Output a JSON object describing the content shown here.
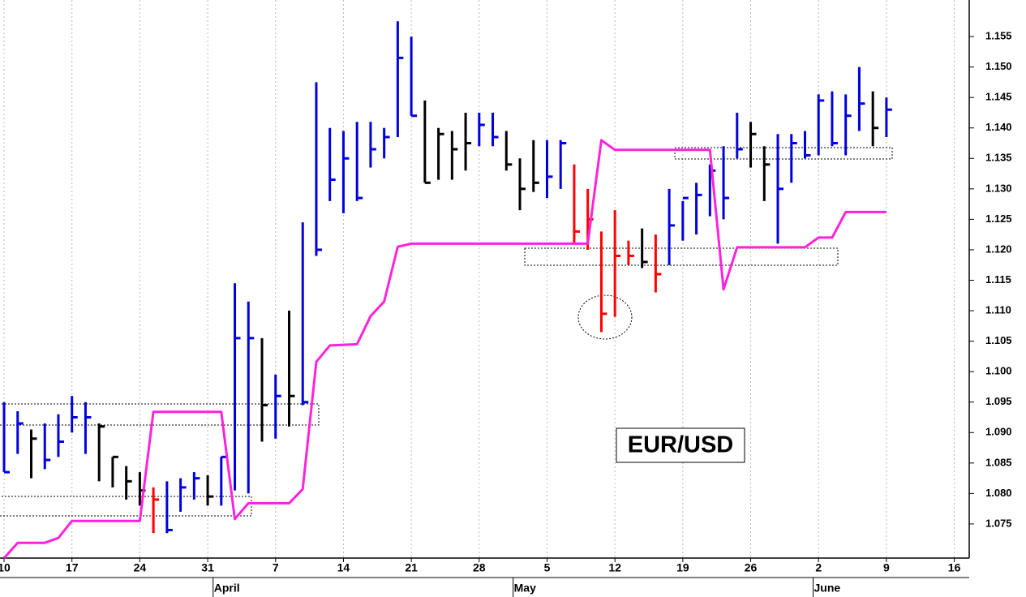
{
  "chart_data": {
    "type": "hlc",
    "annotation": "EUR/USD",
    "x": [
      0,
      1,
      2,
      3,
      4,
      5,
      6,
      7,
      8,
      9,
      10,
      11,
      12,
      13,
      14,
      15,
      16,
      17,
      18,
      19,
      20,
      21,
      22,
      23,
      24,
      25,
      26,
      27,
      28,
      29,
      30,
      31,
      32,
      33,
      34,
      35,
      36,
      37,
      38,
      39,
      40,
      41,
      42,
      43,
      44,
      45,
      46,
      47,
      48,
      49,
      50,
      51,
      52,
      53,
      54,
      55,
      56,
      57,
      58,
      59,
      60,
      61,
      62,
      63,
      64,
      65
    ],
    "high": [
      1.095,
      1.0935,
      1.0905,
      1.0915,
      1.093,
      1.096,
      1.095,
      1.0915,
      1.086,
      1.0845,
      1.0835,
      1.081,
      1.082,
      1.0825,
      1.0835,
      1.083,
      1.086,
      1.1145,
      1.1115,
      1.1055,
      1.0995,
      1.11,
      1.1245,
      1.1475,
      1.14,
      1.1395,
      1.141,
      1.141,
      1.14,
      1.1575,
      1.155,
      1.1445,
      1.14,
      1.1395,
      1.1425,
      1.1425,
      1.1425,
      1.1395,
      1.135,
      1.138,
      1.138,
      1.138,
      1.134,
      1.13,
      1.123,
      1.1265,
      1.1215,
      1.1235,
      1.1225,
      1.13,
      1.128,
      1.131,
      1.134,
      1.137,
      1.1425,
      1.141,
      1.137,
      1.139,
      1.139,
      1.1395,
      1.1455,
      1.146,
      1.1455,
      1.15,
      1.146,
      1.145
    ],
    "low": [
      1.0835,
      1.0865,
      1.0825,
      1.084,
      1.086,
      1.09,
      1.0865,
      1.082,
      1.081,
      1.079,
      1.078,
      1.0735,
      1.0735,
      1.077,
      1.079,
      1.078,
      1.078,
      1.0805,
      1.08,
      1.0885,
      1.089,
      1.091,
      1.0945,
      1.119,
      1.128,
      1.126,
      1.128,
      1.1335,
      1.135,
      1.1385,
      1.142,
      1.131,
      1.1315,
      1.1315,
      1.133,
      1.137,
      1.137,
      1.133,
      1.1265,
      1.1295,
      1.1285,
      1.13,
      1.121,
      1.12,
      1.1065,
      1.109,
      1.1175,
      1.117,
      1.113,
      1.1175,
      1.1215,
      1.1225,
      1.1255,
      1.125,
      1.135,
      1.1335,
      1.128,
      1.121,
      1.131,
      1.135,
      1.1355,
      1.137,
      1.1355,
      1.1395,
      1.137,
      1.1385
    ],
    "close": [
      1.0835,
      1.0915,
      1.089,
      1.0855,
      1.0885,
      1.0925,
      1.0925,
      1.091,
      1.086,
      1.082,
      1.0805,
      1.079,
      1.074,
      1.081,
      1.0825,
      1.0795,
      1.086,
      1.1055,
      1.1055,
      1.0945,
      1.096,
      1.096,
      1.095,
      1.12,
      1.1315,
      1.135,
      1.1285,
      1.1365,
      1.1385,
      1.1515,
      1.142,
      1.131,
      1.139,
      1.1365,
      1.1375,
      1.1405,
      1.1385,
      1.134,
      1.13,
      1.131,
      1.132,
      1.1375,
      1.123,
      1.125,
      1.1095,
      1.119,
      1.119,
      1.118,
      1.116,
      1.124,
      1.1285,
      1.129,
      1.133,
      1.1285,
      1.1365,
      1.139,
      1.134,
      1.13,
      1.1375,
      1.1355,
      1.1445,
      1.1375,
      1.142,
      1.144,
      1.14,
      1.143
    ],
    "colors": [
      "#0000dd",
      "#0000dd",
      "#000000",
      "#0000dd",
      "#0000dd",
      "#0000dd",
      "#0000dd",
      "#000000",
      "#000000",
      "#000000",
      "#000000",
      "#ff0000",
      "#0000dd",
      "#0000dd",
      "#0000dd",
      "#000000",
      "#0000dd",
      "#0000dd",
      "#0000dd",
      "#000000",
      "#0000dd",
      "#000000",
      "#0000dd",
      "#0000dd",
      "#0000dd",
      "#0000dd",
      "#0000dd",
      "#0000dd",
      "#0000dd",
      "#0000dd",
      "#0000dd",
      "#000000",
      "#000000",
      "#000000",
      "#000000",
      "#0000dd",
      "#0000dd",
      "#000000",
      "#000000",
      "#000000",
      "#0000dd",
      "#0000dd",
      "#ff0000",
      "#ff0000",
      "#ff0000",
      "#ff0000",
      "#ff0000",
      "#000000",
      "#ff0000",
      "#0000dd",
      "#0000dd",
      "#0000dd",
      "#0000dd",
      "#0000dd",
      "#0000dd",
      "#000000",
      "#000000",
      "#0000dd",
      "#0000dd",
      "#0000dd",
      "#0000dd",
      "#0000dd",
      "#0000dd",
      "#0000dd",
      "#000000",
      "#0000dd"
    ],
    "line": {
      "color": "#ff22dd",
      "x": [
        0,
        1,
        3,
        4,
        5,
        10,
        11,
        16,
        17,
        18,
        21,
        22,
        23,
        24,
        26,
        27,
        28,
        29,
        30,
        43,
        44,
        45,
        52,
        53,
        54,
        59,
        60,
        61,
        62,
        65
      ],
      "values": [
        1.0694,
        1.0719,
        1.0719,
        1.0727,
        1.0755,
        1.0755,
        1.0934,
        1.0934,
        1.0758,
        1.0784,
        1.0784,
        1.0807,
        1.1016,
        1.1043,
        1.1045,
        1.1091,
        1.1115,
        1.1205,
        1.121,
        1.121,
        1.138,
        1.1364,
        1.1364,
        1.1135,
        1.1204,
        1.1204,
        1.122,
        1.122,
        1.1262,
        1.1262
      ]
    },
    "xlim": [
      -0.3,
      71.1
    ],
    "xticks": [
      {
        "value": 0,
        "label": "10"
      },
      {
        "value": 5,
        "label": "17"
      },
      {
        "value": 10,
        "label": "24"
      },
      {
        "value": 15,
        "label": "31"
      },
      {
        "value": 20,
        "label": "7"
      },
      {
        "value": 25,
        "label": "14"
      },
      {
        "value": 30,
        "label": "21"
      },
      {
        "value": 35,
        "label": "28"
      },
      {
        "value": 40,
        "label": "5"
      },
      {
        "value": 45,
        "label": "12"
      },
      {
        "value": 50,
        "label": "19"
      },
      {
        "value": 55,
        "label": "26"
      },
      {
        "value": 60,
        "label": "2"
      },
      {
        "value": 65,
        "label": "9"
      },
      {
        "value": 70,
        "label": "16"
      }
    ],
    "month_ticks": [
      {
        "value": 15.4,
        "label": "April"
      },
      {
        "value": 37.5,
        "label": "May"
      },
      {
        "value": 59.6,
        "label": "June"
      }
    ],
    "ylim": [
      1.0694,
      1.161
    ],
    "yticks": [
      1.075,
      {
        "value": 1.08,
        "label": "1.080"
      },
      1.085,
      {
        "value": 1.09,
        "label": "1.090"
      },
      1.095,
      {
        "value": 1.1,
        "label": "1.100"
      },
      1.105,
      {
        "value": 1.11,
        "label": "1.110"
      },
      1.115,
      {
        "value": 1.12,
        "label": "1.120"
      },
      1.125,
      {
        "value": 1.13,
        "label": "1.130"
      },
      1.135,
      {
        "value": 1.14,
        "label": "1.140"
      },
      1.145,
      {
        "value": 1.15,
        "label": "1.150"
      },
      1.155
    ],
    "grid": true
  }
}
